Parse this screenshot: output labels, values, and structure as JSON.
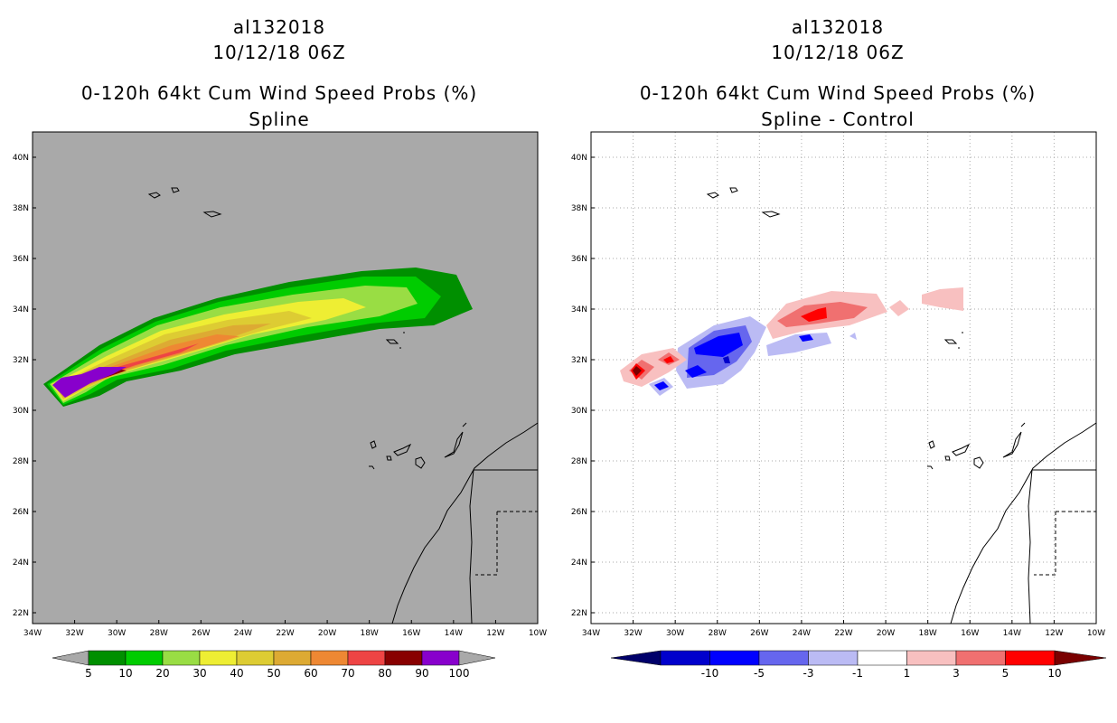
{
  "left": {
    "storm_id": "al132018",
    "datetime": "10/12/18 06Z",
    "product": "0-120h 64kt Cum Wind Speed Probs (%)",
    "subtitle": "Spline",
    "lat_labels": [
      "40N",
      "38N",
      "36N",
      "34N",
      "32N",
      "30N",
      "28N",
      "26N",
      "24N",
      "22N"
    ],
    "lon_labels": [
      "34W",
      "32W",
      "30W",
      "28W",
      "26W",
      "24W",
      "22W",
      "20W",
      "18W",
      "16W",
      "14W",
      "12W",
      "10W"
    ],
    "legend_labels": [
      "5",
      "10",
      "20",
      "30",
      "40",
      "50",
      "60",
      "70",
      "80",
      "90",
      "100"
    ],
    "legend_colors": [
      "#008f00",
      "#00cc00",
      "#99dd44",
      "#eeee33",
      "#ddcc33",
      "#ddaa33",
      "#ee8833",
      "#ee4444",
      "#880000",
      "#8800cc"
    ],
    "background_color": "#a9a9a9"
  },
  "right": {
    "storm_id": "al132018",
    "datetime": "10/12/18 06Z",
    "product": "0-120h 64kt Cum Wind Speed Probs (%)",
    "subtitle": "Spline - Control",
    "lat_labels": [
      "40N",
      "38N",
      "36N",
      "34N",
      "32N",
      "30N",
      "28N",
      "26N",
      "24N",
      "22N"
    ],
    "lon_labels": [
      "34W",
      "32W",
      "30W",
      "28W",
      "26W",
      "24W",
      "22W",
      "20W",
      "18W",
      "16W",
      "14W",
      "12W",
      "10W"
    ],
    "legend_labels": [
      "-10",
      "-5",
      "-3",
      "-1",
      "1",
      "3",
      "5",
      "10"
    ],
    "legend_colors": [
      "#0000cc",
      "#0000ff",
      "#6666ee",
      "#bbbbf4",
      "#ffffff",
      "#f8c0c0",
      "#f07070",
      "#ff0000"
    ],
    "legend_end_colors": [
      "#00006a",
      "#7a0000"
    ],
    "background_color": "#ffffff"
  }
}
